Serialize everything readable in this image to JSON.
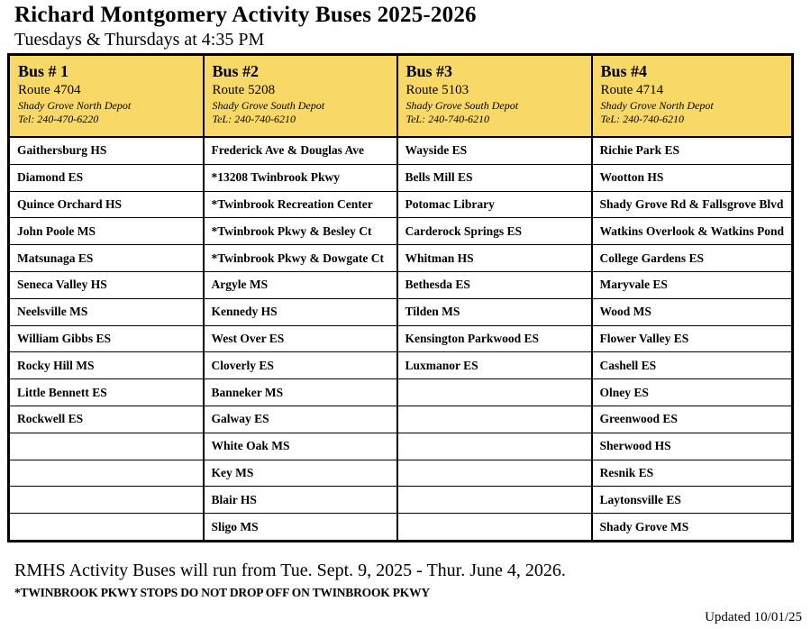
{
  "page": {
    "title": "Richard Montgomery Activity Buses 2025-2026",
    "subtitle": "Tuesdays & Thursdays at 4:35 PM"
  },
  "table": {
    "row_count": 15,
    "header_bg": "#F8D968",
    "border_color": "#000000",
    "buses": [
      {
        "name": "Bus # 1",
        "route": "Route 4704",
        "depot": "Shady Grove North Depot",
        "tel": "Tel: 240-470-6220",
        "stops": [
          "Gaithersburg HS",
          "Diamond ES",
          "Quince Orchard HS",
          "John Poole MS",
          "Matsunaga ES",
          "Seneca Valley HS",
          "Neelsville MS",
          "William Gibbs ES",
          "Rocky Hill MS",
          "Little Bennett ES",
          "Rockwell ES",
          "",
          "",
          "",
          ""
        ]
      },
      {
        "name": "Bus #2",
        "route": "Route 5208",
        "depot": "Shady Grove South Depot",
        "tel": "TeL: 240-740-6210",
        "stops": [
          "Frederick Ave & Douglas Ave",
          "*13208 Twinbrook Pkwy",
          "*Twinbrook Recreation Center",
          "*Twinbrook Pkwy & Besley Ct",
          "*Twinbrook Pkwy & Dowgate Ct",
          "Argyle MS",
          "Kennedy HS",
          "West Over ES",
          "Cloverly ES",
          "Banneker MS",
          "Galway ES",
          "White Oak MS",
          "Key MS",
          "Blair HS",
          "Sligo MS"
        ]
      },
      {
        "name": "Bus #3",
        "route": "Route 5103",
        "depot": "Shady Grove South Depot",
        "tel": "TeL: 240-740-6210",
        "stops": [
          "Wayside ES",
          "Bells Mill ES",
          "Potomac Library",
          "Carderock Springs ES",
          "Whitman HS",
          "Bethesda ES",
          "Tilden MS",
          "Kensington Parkwood ES",
          "Luxmanor ES",
          "",
          "",
          "",
          "",
          "",
          ""
        ]
      },
      {
        "name": "Bus #4",
        "route": "Route 4714",
        "depot": "Shady Grove North Depot",
        "tel": "TeL: 240-740-6210",
        "stops": [
          "Richie Park ES",
          "Wootton HS",
          "Shady Grove Rd & Fallsgrove Blvd",
          "Watkins Overlook & Watkins Pond",
          "College Gardens ES",
          "Maryvale ES",
          "Wood MS",
          "Flower Valley ES",
          "Cashell ES",
          "Olney ES",
          "Greenwood ES",
          "Sherwood HS",
          "Resnik ES",
          "Laytonsville ES",
          "Shady Grove MS"
        ]
      }
    ]
  },
  "footer": {
    "run_dates": "RMHS Activity Buses will run from Tue. Sept. 9, 2025 - Thur. June 4, 2026.",
    "twinbrook_note": "*TWINBROOK PKWY STOPS DO NOT DROP OFF ON TWINBROOK PKWY",
    "updated": "Updated 10/01/25"
  }
}
